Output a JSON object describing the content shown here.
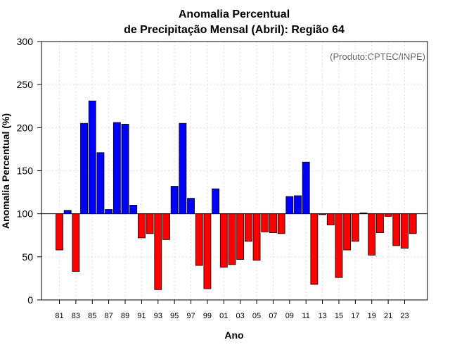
{
  "chart_data": {
    "type": "bar",
    "title_line1": "Anomalia Percentual",
    "title_line2": "de Precipitação Mensal (Abril): Região 64",
    "xlabel": "Ano",
    "ylabel": "Anomalia Percentual (%)",
    "credit": "(Produto:CPTEC/INPE)",
    "baseline": 100,
    "ylim": [
      0,
      300
    ],
    "yticks": [
      0,
      50,
      100,
      150,
      200,
      250,
      300
    ],
    "categories": [
      "81",
      "82",
      "83",
      "84",
      "85",
      "86",
      "87",
      "88",
      "89",
      "90",
      "91",
      "92",
      "93",
      "94",
      "95",
      "96",
      "97",
      "98",
      "99",
      "00",
      "01",
      "02",
      "03",
      "04",
      "05",
      "06",
      "07",
      "08",
      "09",
      "10",
      "11",
      "12",
      "13",
      "14",
      "15",
      "16",
      "17",
      "18",
      "19",
      "20",
      "21",
      "22",
      "23",
      "24"
    ],
    "xtick_labels": [
      "81",
      "83",
      "85",
      "87",
      "89",
      "91",
      "93",
      "95",
      "97",
      "99",
      "01",
      "03",
      "05",
      "07",
      "09",
      "11",
      "13",
      "15",
      "17",
      "19",
      "21",
      "23"
    ],
    "values": [
      58,
      104,
      33,
      205,
      231,
      171,
      105,
      206,
      204,
      110,
      72,
      77,
      12,
      70,
      132,
      205,
      118,
      40,
      13,
      129,
      38,
      41,
      47,
      68,
      46,
      79,
      78,
      77,
      120,
      121,
      160,
      18,
      99,
      87,
      26,
      58,
      68,
      101,
      52,
      78,
      97,
      63,
      60,
      77
    ],
    "colors": {
      "above": "#0000ff",
      "below": "#ff0000"
    }
  }
}
